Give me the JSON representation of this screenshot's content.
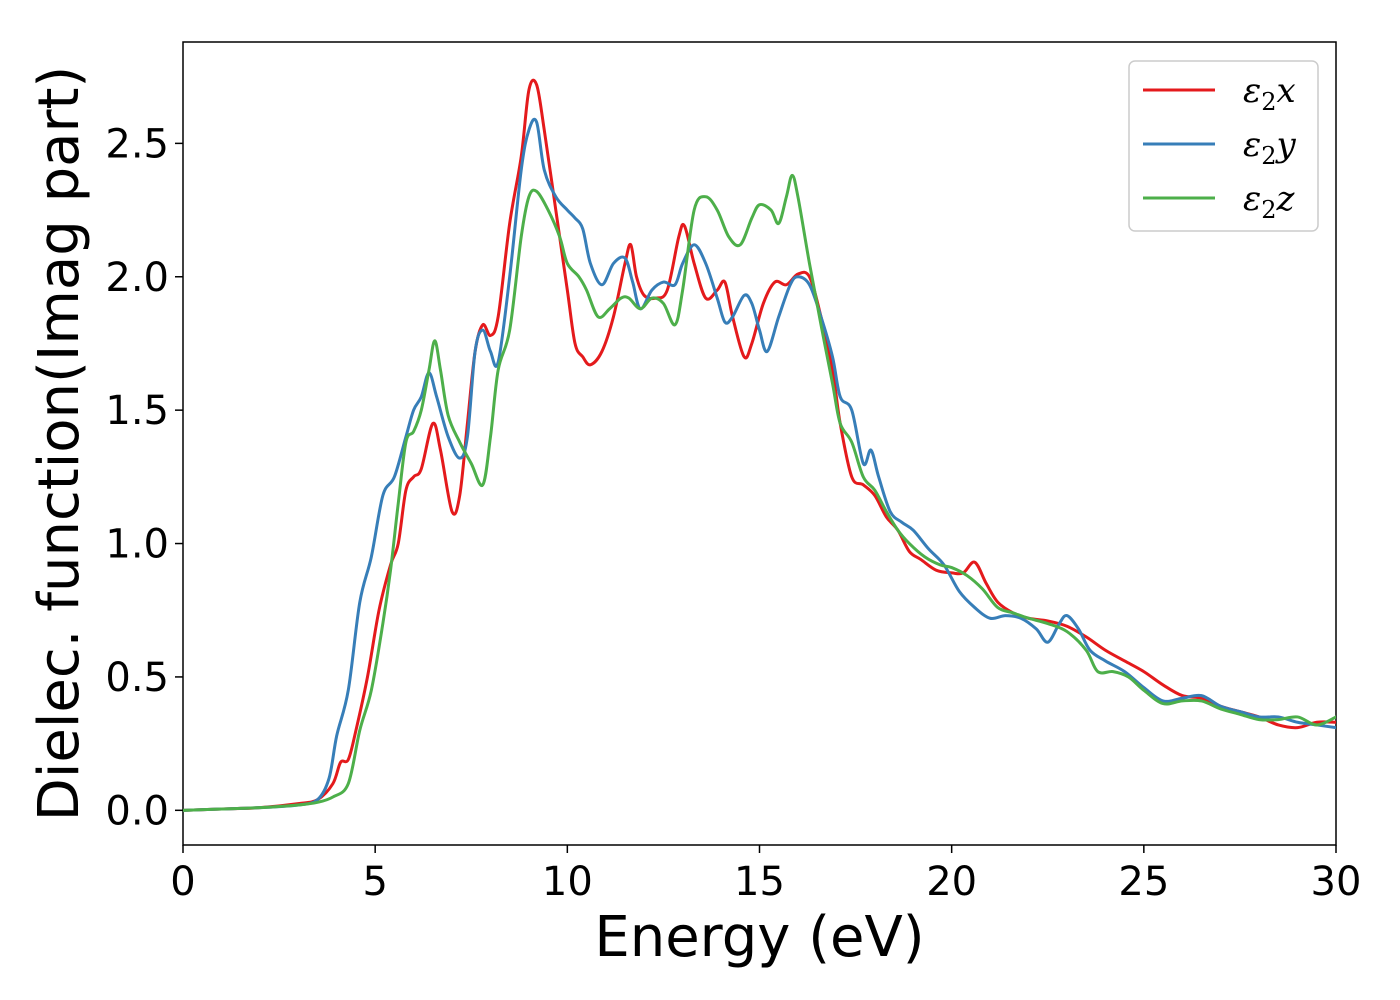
{
  "chart_data": {
    "type": "line",
    "title": "",
    "xlabel": "Energy (eV)",
    "ylabel": "Dielec. function(Imag part)",
    "xlim": [
      0,
      30
    ],
    "ylim": [
      -0.13,
      2.88
    ],
    "xticks": [
      0,
      5,
      10,
      15,
      20,
      25,
      30
    ],
    "xtick_labels": [
      "0",
      "5",
      "10",
      "15",
      "20",
      "25",
      "30"
    ],
    "yticks": [
      0.0,
      0.5,
      1.0,
      1.5,
      2.0,
      2.5
    ],
    "ytick_labels": [
      "0.0",
      "0.5",
      "1.0",
      "1.5",
      "2.0",
      "2.5"
    ],
    "grid": false,
    "legend_position": "top-right",
    "series": [
      {
        "name": "ε₂x",
        "legend_base": "ε",
        "legend_sub": "2",
        "legend_tail": "x",
        "color": "#e41a1c",
        "points": [
          [
            0,
            0
          ],
          [
            1,
            0.005
          ],
          [
            2,
            0.01
          ],
          [
            3,
            0.025
          ],
          [
            3.5,
            0.04
          ],
          [
            3.9,
            0.1
          ],
          [
            4.1,
            0.18
          ],
          [
            4.3,
            0.19
          ],
          [
            4.5,
            0.3
          ],
          [
            4.8,
            0.5
          ],
          [
            5.1,
            0.75
          ],
          [
            5.4,
            0.92
          ],
          [
            5.6,
            1.0
          ],
          [
            5.8,
            1.2
          ],
          [
            6.0,
            1.25
          ],
          [
            6.2,
            1.28
          ],
          [
            6.5,
            1.45
          ],
          [
            6.7,
            1.35
          ],
          [
            7.0,
            1.12
          ],
          [
            7.2,
            1.18
          ],
          [
            7.4,
            1.45
          ],
          [
            7.6,
            1.72
          ],
          [
            7.8,
            1.82
          ],
          [
            8.0,
            1.78
          ],
          [
            8.2,
            1.85
          ],
          [
            8.5,
            2.2
          ],
          [
            8.8,
            2.45
          ],
          [
            9.0,
            2.7
          ],
          [
            9.2,
            2.72
          ],
          [
            9.4,
            2.55
          ],
          [
            9.7,
            2.25
          ],
          [
            10.0,
            1.95
          ],
          [
            10.2,
            1.75
          ],
          [
            10.4,
            1.7
          ],
          [
            10.6,
            1.67
          ],
          [
            10.9,
            1.72
          ],
          [
            11.2,
            1.85
          ],
          [
            11.5,
            2.05
          ],
          [
            11.65,
            2.12
          ],
          [
            11.8,
            2.0
          ],
          [
            12.0,
            1.93
          ],
          [
            12.3,
            1.92
          ],
          [
            12.6,
            1.95
          ],
          [
            12.9,
            2.15
          ],
          [
            13.05,
            2.19
          ],
          [
            13.3,
            2.05
          ],
          [
            13.6,
            1.92
          ],
          [
            13.9,
            1.95
          ],
          [
            14.1,
            1.98
          ],
          [
            14.3,
            1.85
          ],
          [
            14.6,
            1.7
          ],
          [
            14.8,
            1.75
          ],
          [
            15.1,
            1.9
          ],
          [
            15.4,
            1.98
          ],
          [
            15.7,
            1.97
          ],
          [
            16.0,
            2.01
          ],
          [
            16.3,
            2.0
          ],
          [
            16.6,
            1.85
          ],
          [
            16.9,
            1.65
          ],
          [
            17.1,
            1.45
          ],
          [
            17.4,
            1.25
          ],
          [
            17.7,
            1.22
          ],
          [
            18.0,
            1.18
          ],
          [
            18.3,
            1.1
          ],
          [
            18.6,
            1.05
          ],
          [
            18.9,
            0.97
          ],
          [
            19.2,
            0.94
          ],
          [
            19.6,
            0.9
          ],
          [
            20.0,
            0.89
          ],
          [
            20.3,
            0.89
          ],
          [
            20.6,
            0.93
          ],
          [
            20.9,
            0.85
          ],
          [
            21.2,
            0.78
          ],
          [
            21.6,
            0.74
          ],
          [
            22.0,
            0.72
          ],
          [
            22.5,
            0.71
          ],
          [
            23.0,
            0.69
          ],
          [
            23.5,
            0.65
          ],
          [
            24.0,
            0.6
          ],
          [
            24.5,
            0.56
          ],
          [
            25.0,
            0.52
          ],
          [
            25.5,
            0.47
          ],
          [
            26.0,
            0.43
          ],
          [
            26.5,
            0.42
          ],
          [
            27.0,
            0.39
          ],
          [
            27.5,
            0.37
          ],
          [
            28.0,
            0.35
          ],
          [
            28.5,
            0.32
          ],
          [
            29.0,
            0.31
          ],
          [
            29.5,
            0.33
          ],
          [
            30.0,
            0.33
          ]
        ]
      },
      {
        "name": "ε₂y",
        "legend_base": "ε",
        "legend_sub": "2",
        "legend_tail": "y",
        "color": "#377eb8",
        "points": [
          [
            0,
            0
          ],
          [
            1,
            0.005
          ],
          [
            2,
            0.01
          ],
          [
            3,
            0.02
          ],
          [
            3.5,
            0.04
          ],
          [
            3.8,
            0.12
          ],
          [
            4.0,
            0.28
          ],
          [
            4.3,
            0.45
          ],
          [
            4.6,
            0.78
          ],
          [
            4.9,
            0.95
          ],
          [
            5.2,
            1.18
          ],
          [
            5.5,
            1.25
          ],
          [
            5.8,
            1.4
          ],
          [
            6.0,
            1.5
          ],
          [
            6.2,
            1.55
          ],
          [
            6.4,
            1.64
          ],
          [
            6.6,
            1.55
          ],
          [
            6.9,
            1.4
          ],
          [
            7.2,
            1.32
          ],
          [
            7.4,
            1.4
          ],
          [
            7.6,
            1.72
          ],
          [
            7.8,
            1.8
          ],
          [
            8.0,
            1.72
          ],
          [
            8.2,
            1.68
          ],
          [
            8.5,
            2.0
          ],
          [
            8.8,
            2.4
          ],
          [
            9.0,
            2.55
          ],
          [
            9.2,
            2.58
          ],
          [
            9.4,
            2.4
          ],
          [
            9.7,
            2.3
          ],
          [
            10.0,
            2.25
          ],
          [
            10.2,
            2.22
          ],
          [
            10.4,
            2.18
          ],
          [
            10.6,
            2.05
          ],
          [
            10.9,
            1.97
          ],
          [
            11.2,
            2.05
          ],
          [
            11.5,
            2.07
          ],
          [
            11.7,
            1.98
          ],
          [
            11.9,
            1.88
          ],
          [
            12.2,
            1.95
          ],
          [
            12.5,
            1.98
          ],
          [
            12.8,
            1.97
          ],
          [
            13.0,
            2.05
          ],
          [
            13.3,
            2.12
          ],
          [
            13.6,
            2.05
          ],
          [
            13.9,
            1.92
          ],
          [
            14.1,
            1.83
          ],
          [
            14.3,
            1.85
          ],
          [
            14.6,
            1.93
          ],
          [
            14.8,
            1.9
          ],
          [
            15.0,
            1.8
          ],
          [
            15.2,
            1.72
          ],
          [
            15.5,
            1.85
          ],
          [
            15.8,
            1.97
          ],
          [
            16.0,
            2.0
          ],
          [
            16.3,
            1.97
          ],
          [
            16.6,
            1.85
          ],
          [
            16.9,
            1.7
          ],
          [
            17.1,
            1.55
          ],
          [
            17.4,
            1.5
          ],
          [
            17.7,
            1.3
          ],
          [
            17.9,
            1.35
          ],
          [
            18.1,
            1.25
          ],
          [
            18.4,
            1.12
          ],
          [
            18.7,
            1.08
          ],
          [
            19.0,
            1.05
          ],
          [
            19.4,
            0.98
          ],
          [
            19.8,
            0.92
          ],
          [
            20.2,
            0.82
          ],
          [
            20.6,
            0.76
          ],
          [
            21.0,
            0.72
          ],
          [
            21.4,
            0.73
          ],
          [
            21.8,
            0.72
          ],
          [
            22.2,
            0.68
          ],
          [
            22.5,
            0.63
          ],
          [
            22.8,
            0.7
          ],
          [
            23.0,
            0.73
          ],
          [
            23.3,
            0.68
          ],
          [
            23.6,
            0.6
          ],
          [
            24.0,
            0.56
          ],
          [
            24.5,
            0.52
          ],
          [
            25.0,
            0.46
          ],
          [
            25.5,
            0.41
          ],
          [
            26.0,
            0.42
          ],
          [
            26.5,
            0.43
          ],
          [
            27.0,
            0.39
          ],
          [
            27.5,
            0.37
          ],
          [
            28.0,
            0.35
          ],
          [
            28.5,
            0.35
          ],
          [
            29.0,
            0.33
          ],
          [
            29.5,
            0.32
          ],
          [
            30.0,
            0.31
          ]
        ]
      },
      {
        "name": "ε₂z",
        "legend_base": "ε",
        "legend_sub": "2",
        "legend_tail": "z",
        "color": "#4daf4a",
        "points": [
          [
            0,
            0
          ],
          [
            1,
            0.005
          ],
          [
            2,
            0.01
          ],
          [
            3,
            0.02
          ],
          [
            3.5,
            0.03
          ],
          [
            3.9,
            0.05
          ],
          [
            4.3,
            0.1
          ],
          [
            4.6,
            0.3
          ],
          [
            4.9,
            0.45
          ],
          [
            5.2,
            0.7
          ],
          [
            5.4,
            0.9
          ],
          [
            5.6,
            1.15
          ],
          [
            5.8,
            1.38
          ],
          [
            6.0,
            1.42
          ],
          [
            6.2,
            1.5
          ],
          [
            6.4,
            1.65
          ],
          [
            6.55,
            1.76
          ],
          [
            6.7,
            1.65
          ],
          [
            6.9,
            1.48
          ],
          [
            7.2,
            1.38
          ],
          [
            7.5,
            1.3
          ],
          [
            7.8,
            1.22
          ],
          [
            8.0,
            1.4
          ],
          [
            8.2,
            1.65
          ],
          [
            8.5,
            1.8
          ],
          [
            8.8,
            2.15
          ],
          [
            9.0,
            2.3
          ],
          [
            9.2,
            2.32
          ],
          [
            9.5,
            2.25
          ],
          [
            9.8,
            2.15
          ],
          [
            10.0,
            2.05
          ],
          [
            10.3,
            2.0
          ],
          [
            10.5,
            1.95
          ],
          [
            10.8,
            1.85
          ],
          [
            11.1,
            1.88
          ],
          [
            11.4,
            1.92
          ],
          [
            11.6,
            1.92
          ],
          [
            11.9,
            1.88
          ],
          [
            12.2,
            1.92
          ],
          [
            12.5,
            1.9
          ],
          [
            12.8,
            1.82
          ],
          [
            13.0,
            1.95
          ],
          [
            13.3,
            2.25
          ],
          [
            13.6,
            2.3
          ],
          [
            13.9,
            2.25
          ],
          [
            14.2,
            2.15
          ],
          [
            14.5,
            2.12
          ],
          [
            14.8,
            2.22
          ],
          [
            15.0,
            2.27
          ],
          [
            15.3,
            2.25
          ],
          [
            15.5,
            2.2
          ],
          [
            15.7,
            2.3
          ],
          [
            15.85,
            2.38
          ],
          [
            16.0,
            2.3
          ],
          [
            16.3,
            2.05
          ],
          [
            16.6,
            1.82
          ],
          [
            16.9,
            1.6
          ],
          [
            17.1,
            1.45
          ],
          [
            17.4,
            1.38
          ],
          [
            17.7,
            1.25
          ],
          [
            18.0,
            1.2
          ],
          [
            18.3,
            1.12
          ],
          [
            18.6,
            1.05
          ],
          [
            18.9,
            1.0
          ],
          [
            19.3,
            0.95
          ],
          [
            19.7,
            0.92
          ],
          [
            20.0,
            0.91
          ],
          [
            20.4,
            0.88
          ],
          [
            20.8,
            0.83
          ],
          [
            21.2,
            0.76
          ],
          [
            21.6,
            0.74
          ],
          [
            22.0,
            0.72
          ],
          [
            22.5,
            0.7
          ],
          [
            23.0,
            0.67
          ],
          [
            23.5,
            0.6
          ],
          [
            23.8,
            0.52
          ],
          [
            24.2,
            0.52
          ],
          [
            24.6,
            0.5
          ],
          [
            25.0,
            0.45
          ],
          [
            25.5,
            0.4
          ],
          [
            26.0,
            0.41
          ],
          [
            26.5,
            0.41
          ],
          [
            27.0,
            0.38
          ],
          [
            27.5,
            0.36
          ],
          [
            28.0,
            0.34
          ],
          [
            28.5,
            0.34
          ],
          [
            29.0,
            0.35
          ],
          [
            29.5,
            0.32
          ],
          [
            30.0,
            0.35
          ]
        ]
      }
    ]
  }
}
